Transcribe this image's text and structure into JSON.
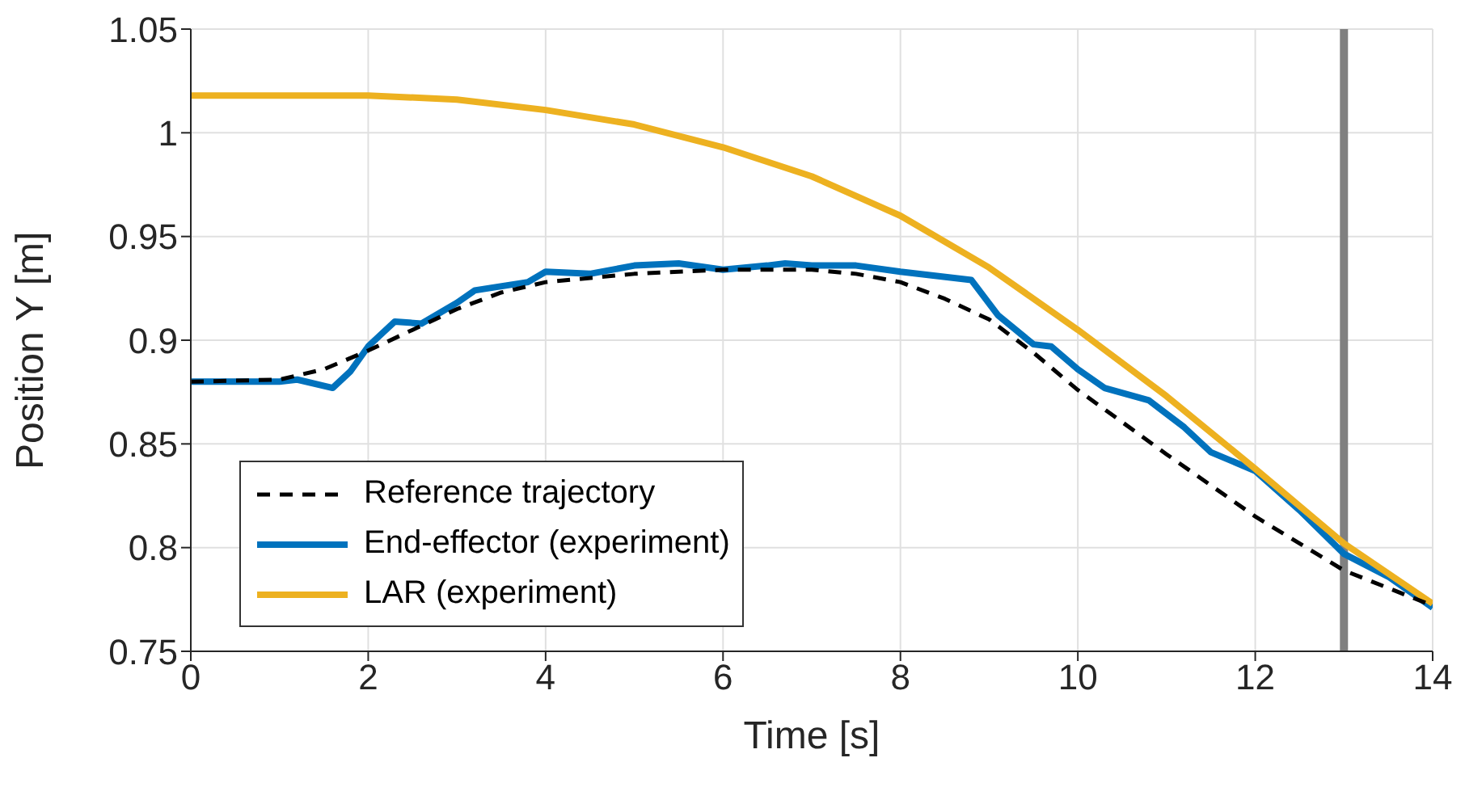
{
  "chart_data": {
    "type": "line",
    "xlabel": "Time [s]",
    "ylabel": "Position Y [m]",
    "xlim": [
      0,
      14
    ],
    "xticks": [
      0,
      2,
      4,
      6,
      8,
      10,
      12,
      14
    ],
    "ylim": [
      0.75,
      1.05
    ],
    "yticks": [
      0.75,
      0.8,
      0.85,
      0.9,
      0.95,
      1,
      1.05
    ],
    "grid": true,
    "legend": "bottom left",
    "series": [
      {
        "name": "Reference trajectory",
        "color": "#000000",
        "line_style": "dashed",
        "x": [
          0,
          1,
          1.5,
          2,
          2.5,
          3,
          3.5,
          4,
          5,
          6,
          7,
          7.5,
          8,
          8.5,
          9,
          9.5,
          10,
          11,
          12,
          13,
          14
        ],
        "values": [
          0.88,
          0.881,
          0.886,
          0.895,
          0.905,
          0.915,
          0.923,
          0.928,
          0.932,
          0.934,
          0.934,
          0.932,
          0.928,
          0.92,
          0.91,
          0.894,
          0.876,
          0.845,
          0.815,
          0.789,
          0.772
        ]
      },
      {
        "name": "End-effector (experiment)",
        "color": "#0072bd",
        "line_style": "solid",
        "x": [
          0,
          1,
          1.2,
          1.6,
          1.8,
          2,
          2.3,
          2.6,
          3,
          3.2,
          3.8,
          4,
          4.5,
          5,
          5.5,
          6,
          6.5,
          6.7,
          7,
          7.5,
          8,
          8.8,
          9.1,
          9.5,
          9.7,
          10,
          10.3,
          10.8,
          11.2,
          11.5,
          12,
          12.5,
          13,
          13.5,
          14
        ],
        "values": [
          0.88,
          0.88,
          0.881,
          0.877,
          0.885,
          0.897,
          0.909,
          0.908,
          0.918,
          0.924,
          0.928,
          0.933,
          0.932,
          0.936,
          0.937,
          0.934,
          0.936,
          0.937,
          0.936,
          0.936,
          0.933,
          0.929,
          0.912,
          0.898,
          0.897,
          0.886,
          0.877,
          0.871,
          0.858,
          0.846,
          0.837,
          0.818,
          0.797,
          0.786,
          0.771
        ]
      },
      {
        "name": "LAR (experiment)",
        "color": "#edb120",
        "line_style": "solid",
        "x": [
          0,
          1,
          2,
          3,
          4,
          5,
          6,
          7,
          8,
          9,
          10,
          11,
          12,
          13,
          14
        ],
        "values": [
          1.018,
          1.018,
          1.018,
          1.016,
          1.011,
          1.004,
          0.993,
          0.979,
          0.96,
          0.935,
          0.905,
          0.873,
          0.838,
          0.802,
          0.773
        ]
      }
    ],
    "ref_lines": [
      {
        "axis": "x",
        "value": 13,
        "color": "#808080"
      }
    ]
  }
}
